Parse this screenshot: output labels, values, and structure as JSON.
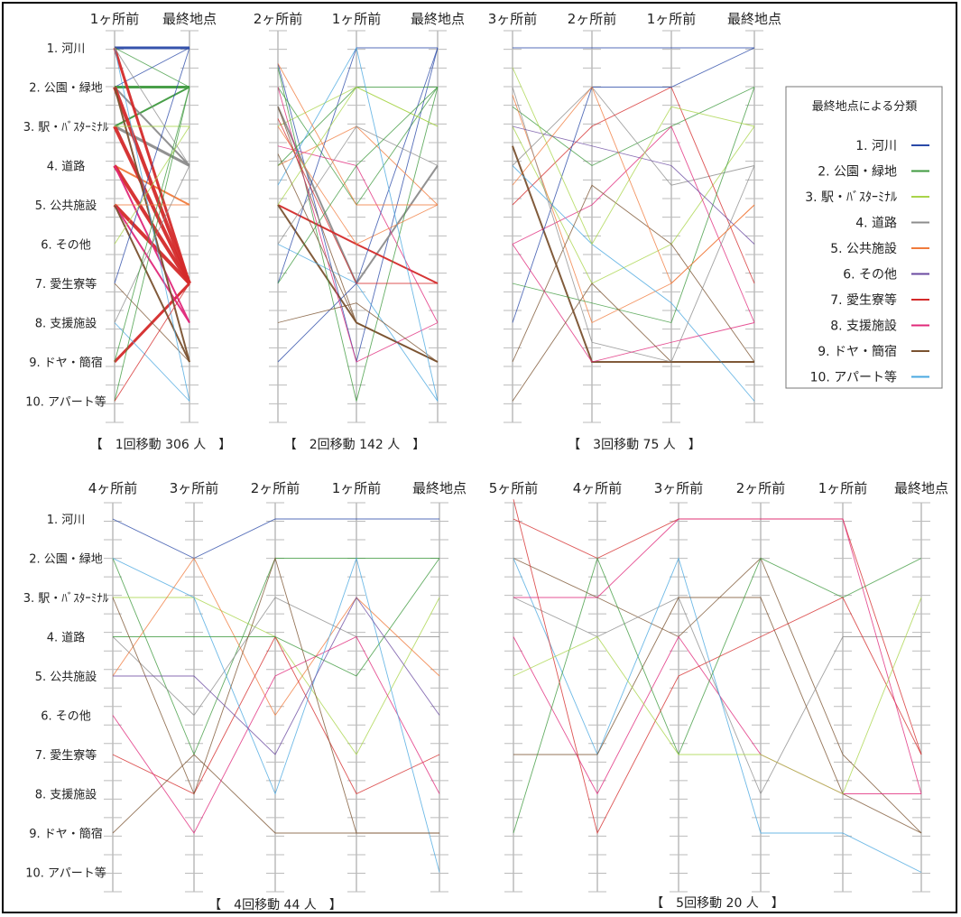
{
  "categories": [
    "1. 河川",
    "2. 公園・緑地",
    "3. 駅・バスターミナル",
    "4. 道路",
    "5. 公共施設",
    "6. その他",
    "7. 愛生寮等",
    "8. 支援施設",
    "9. ドヤ・簡宿",
    "10. アパート等"
  ],
  "category_labels_on_axis": [
    "1. 河川",
    "2. 公園・緑地",
    "3. 駅・ﾊﾞｽﾀｰﾐﾅﾙ",
    "4. 道路",
    "5. 公共施設",
    "6. その他",
    "7. 愛生寮等",
    "8. 支援施設",
    "9. ドヤ・簡宿",
    "10. アパート等"
  ],
  "category_colors": [
    "#2a4aa8",
    "#3f9a3f",
    "#a9d44a",
    "#8c8c8c",
    "#f07b3c",
    "#6a4aa0",
    "#d42a2a",
    "#e0287a",
    "#7a5230",
    "#4aa8e0"
  ],
  "legend": {
    "title": "最終地点による分類",
    "items": [
      "1. 河川",
      "2. 公園・緑地",
      "3. 駅・ﾊﾞｽﾀｰﾐﾅﾙ",
      "4. 道路",
      "5. 公共施設",
      "6. その他",
      "7. 愛生寮等",
      "8. 支援施設",
      "9. ドヤ・簡宿",
      "10. アパート等"
    ]
  },
  "chart_data": [
    {
      "type": "parallel-coordinates",
      "caption": "【　1回移動 306 人　】",
      "axes": [
        "1ヶ所前",
        "最終地点"
      ],
      "flows": [
        {
          "path": [
            1,
            1
          ],
          "weight": 3
        },
        {
          "path": [
            2,
            1
          ],
          "weight": 1
        },
        {
          "path": [
            2,
            2
          ],
          "weight": 3
        },
        {
          "path": [
            3,
            2
          ],
          "weight": 2
        },
        {
          "path": [
            2,
            4
          ],
          "weight": 2
        },
        {
          "path": [
            3,
            4
          ],
          "weight": 3
        },
        {
          "path": [
            4,
            5
          ],
          "weight": 2
        },
        {
          "path": [
            1,
            7
          ],
          "weight": 3
        },
        {
          "path": [
            2,
            7
          ],
          "weight": 4
        },
        {
          "path": [
            3,
            7
          ],
          "weight": 4
        },
        {
          "path": [
            4,
            7
          ],
          "weight": 4
        },
        {
          "path": [
            5,
            7
          ],
          "weight": 4
        },
        {
          "path": [
            9,
            7
          ],
          "weight": 3
        },
        {
          "path": [
            4,
            8
          ],
          "weight": 2
        },
        {
          "path": [
            5,
            8
          ],
          "weight": 2
        },
        {
          "path": [
            2,
            9
          ],
          "weight": 2
        },
        {
          "path": [
            5,
            9
          ],
          "weight": 2
        },
        {
          "path": [
            7,
            9
          ],
          "weight": 1
        },
        {
          "path": [
            3,
            3
          ],
          "weight": 1
        },
        {
          "path": [
            5,
            5
          ],
          "weight": 1
        },
        {
          "path": [
            1,
            10
          ],
          "weight": 1
        },
        {
          "path": [
            8,
            10
          ],
          "weight": 1
        },
        {
          "path": [
            10,
            2
          ],
          "weight": 1
        },
        {
          "path": [
            7,
            1
          ],
          "weight": 1
        },
        {
          "path": [
            6,
            3
          ],
          "weight": 1
        },
        {
          "path": [
            8,
            4
          ],
          "weight": 1
        },
        {
          "path": [
            9,
            2
          ],
          "weight": 1
        },
        {
          "path": [
            10,
            7
          ],
          "weight": 1
        },
        {
          "path": [
            1,
            2
          ],
          "weight": 1
        },
        {
          "path": [
            1,
            4
          ],
          "weight": 1
        }
      ]
    },
    {
      "type": "parallel-coordinates",
      "caption": "【　2回移動 142 人　】",
      "axes": [
        "2ヶ所前",
        "1ヶ所前",
        "最終地点"
      ],
      "flows": [
        {
          "path": [
            1.4,
            9,
            1
          ],
          "weight": 1
        },
        {
          "path": [
            2,
            5,
            2
          ],
          "weight": 1
        },
        {
          "path": [
            3,
            2,
            3
          ],
          "weight": 1
        },
        {
          "path": [
            2.5,
            7,
            4
          ],
          "weight": 2
        },
        {
          "path": [
            4,
            3,
            5
          ],
          "weight": 1
        },
        {
          "path": [
            5,
            6,
            7
          ],
          "weight": 2
        },
        {
          "path": [
            3.5,
            4,
            8
          ],
          "weight": 1
        },
        {
          "path": [
            5,
            8,
            9
          ],
          "weight": 2
        },
        {
          "path": [
            6,
            7,
            10
          ],
          "weight": 1
        },
        {
          "path": [
            7,
            1,
            1
          ],
          "weight": 1
        },
        {
          "path": [
            2.5,
            8,
            9
          ],
          "weight": 1
        },
        {
          "path": [
            4,
            2,
            2
          ],
          "weight": 1
        },
        {
          "path": [
            1.5,
            10,
            2
          ],
          "weight": 1
        },
        {
          "path": [
            3,
            6,
            5
          ],
          "weight": 1
        },
        {
          "path": [
            9,
            7,
            1
          ],
          "weight": 1
        },
        {
          "path": [
            2,
            9,
            8
          ],
          "weight": 1
        },
        {
          "path": [
            5,
            2,
            3
          ],
          "weight": 1
        },
        {
          "path": [
            8,
            7.5,
            9
          ],
          "weight": 1
        },
        {
          "path": [
            6,
            3,
            4
          ],
          "weight": 1
        },
        {
          "path": [
            4.5,
            1,
            10
          ],
          "weight": 1
        },
        {
          "path": [
            2.8,
            7,
            7
          ],
          "weight": 1
        },
        {
          "path": [
            7,
            4,
            2
          ],
          "weight": 1
        },
        {
          "path": [
            3.7,
            8,
            9
          ],
          "weight": 1
        },
        {
          "path": [
            1.4,
            5,
            5
          ],
          "weight": 1
        }
      ]
    },
    {
      "type": "parallel-coordinates",
      "caption": "【　3回移動 75 人　】",
      "axes": [
        "3ヶ所前",
        "2ヶ所前",
        "1ヶ所前",
        "最終地点"
      ],
      "flows": [
        {
          "path": [
            1,
            1,
            1,
            1
          ],
          "weight": 1
        },
        {
          "path": [
            2.5,
            4,
            3,
            2
          ],
          "weight": 1
        },
        {
          "path": [
            3,
            7,
            6,
            3
          ],
          "weight": 1
        },
        {
          "path": [
            4,
            2,
            4.5,
            4
          ],
          "weight": 1
        },
        {
          "path": [
            2.2,
            8,
            7,
            5
          ],
          "weight": 1
        },
        {
          "path": [
            5,
            3,
            2,
            7
          ],
          "weight": 1
        },
        {
          "path": [
            3.5,
            9,
            9,
            9
          ],
          "weight": 2
        },
        {
          "path": [
            6,
            5,
            3,
            8
          ],
          "weight": 1
        },
        {
          "path": [
            4,
            6,
            7.5,
            10
          ],
          "weight": 1
        },
        {
          "path": [
            8,
            2,
            2,
            1
          ],
          "weight": 1
        },
        {
          "path": [
            9,
            4.5,
            6,
            9
          ],
          "weight": 1
        },
        {
          "path": [
            7,
            7.5,
            8,
            2
          ],
          "weight": 1
        },
        {
          "path": [
            2,
            8.5,
            9,
            4
          ],
          "weight": 1
        },
        {
          "path": [
            3,
            3.5,
            4,
            6
          ],
          "weight": 1
        },
        {
          "path": [
            6,
            9,
            8.5,
            8
          ],
          "weight": 1
        },
        {
          "path": [
            1.5,
            6,
            2.5,
            3
          ],
          "weight": 1
        },
        {
          "path": [
            4.5,
            2,
            7,
            5
          ],
          "weight": 1
        },
        {
          "path": [
            10,
            7,
            9,
            9
          ],
          "weight": 1
        }
      ]
    },
    {
      "type": "parallel-coordinates",
      "caption": "【　4回移動 44 人　】",
      "axes": [
        "4ヶ所前",
        "3ヶ所前",
        "2ヶ所前",
        "1ヶ所前",
        "最終地点"
      ],
      "flows": [
        {
          "path": [
            1,
            2,
            1,
            1,
            1
          ],
          "weight": 1
        },
        {
          "path": [
            2,
            7,
            2,
            2,
            2
          ],
          "weight": 1
        },
        {
          "path": [
            3,
            3,
            4,
            7,
            3
          ],
          "weight": 1
        },
        {
          "path": [
            4,
            6,
            3,
            4,
            4
          ],
          "weight": 1
        },
        {
          "path": [
            5,
            2,
            6,
            3,
            5
          ],
          "weight": 1
        },
        {
          "path": [
            7,
            8,
            4,
            8,
            7
          ],
          "weight": 1
        },
        {
          "path": [
            9,
            7,
            9,
            9,
            9
          ],
          "weight": 1
        },
        {
          "path": [
            6,
            9,
            5,
            4,
            8
          ],
          "weight": 1
        },
        {
          "path": [
            2,
            3,
            8,
            2,
            10
          ],
          "weight": 1
        },
        {
          "path": [
            4,
            4,
            4,
            5,
            2
          ],
          "weight": 1
        },
        {
          "path": [
            3,
            8,
            2,
            9,
            9
          ],
          "weight": 1
        },
        {
          "path": [
            5,
            5,
            7,
            3,
            6
          ],
          "weight": 1
        }
      ]
    },
    {
      "type": "parallel-coordinates",
      "caption": "【　5回移動 20 人　】",
      "axes": [
        "5ヶ所前",
        "4ヶ所前",
        "3ヶ所前",
        "2ヶ所前",
        "1ヶ所前",
        "最終地点"
      ],
      "flows": [
        {
          "path": [
            1,
            2,
            1,
            1,
            1,
            7
          ],
          "weight": 1
        },
        {
          "path": [
            2,
            3,
            4,
            2,
            7,
            9
          ],
          "weight": 1
        },
        {
          "path": [
            3,
            4,
            3,
            8,
            4,
            4
          ],
          "weight": 1
        },
        {
          "path": [
            4,
            8,
            4,
            7,
            8,
            8
          ],
          "weight": 1
        },
        {
          "path": [
            2,
            7,
            2,
            9,
            9,
            10
          ],
          "weight": 1
        },
        {
          "path": [
            7,
            7,
            3,
            3,
            8,
            9
          ],
          "weight": 1
        },
        {
          "path": [
            9,
            2,
            7,
            2,
            3,
            2
          ],
          "weight": 1
        },
        {
          "path": [
            0.5,
            9,
            5,
            4,
            3,
            7
          ],
          "weight": 1
        },
        {
          "path": [
            3,
            3,
            1,
            1,
            1,
            8
          ],
          "weight": 1
        },
        {
          "path": [
            5,
            4,
            7,
            7,
            8,
            3
          ],
          "weight": 1
        }
      ]
    }
  ]
}
